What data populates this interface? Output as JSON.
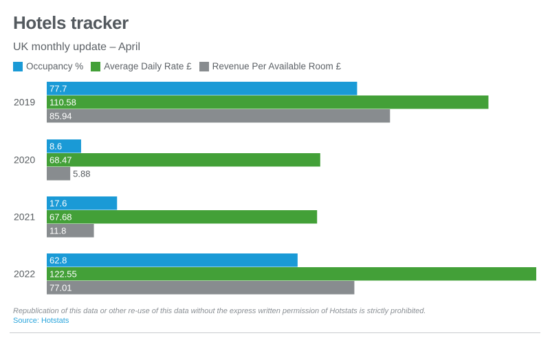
{
  "title": "Hotels tracker",
  "subtitle": "UK monthly update – April",
  "legend": [
    {
      "label": "Occupancy %",
      "color": "#1a9ad6"
    },
    {
      "label": "Average Daily Rate £",
      "color": "#43a038"
    },
    {
      "label": "Revenue Per Available Room £",
      "color": "#888c8f"
    }
  ],
  "chart_data": {
    "type": "bar",
    "orientation": "horizontal",
    "categories": [
      "2019",
      "2020",
      "2021",
      "2022"
    ],
    "series": [
      {
        "name": "Occupancy %",
        "color": "#1a9ad6",
        "values": [
          77.7,
          8.6,
          17.6,
          62.8
        ],
        "labels": [
          "77.7",
          "8.6",
          "17.6",
          "62.8"
        ]
      },
      {
        "name": "Average Daily Rate £",
        "color": "#43a038",
        "values": [
          110.58,
          68.47,
          67.68,
          122.55
        ],
        "labels": [
          "110.58",
          "68.47",
          "67.68",
          "122.55"
        ]
      },
      {
        "name": "Revenue Per Available Room £",
        "color": "#888c8f",
        "values": [
          85.94,
          5.88,
          11.8,
          77.01
        ],
        "labels": [
          "85.94",
          "5.88",
          "11.8",
          "77.01"
        ]
      }
    ],
    "xlim": [
      0,
      122.55
    ],
    "grid": false,
    "legend_position": "top-left"
  },
  "footer": {
    "note": "Republication of this data or other re-use of this data without the express written permission of Hotstats is strictly prohibited.",
    "source": "Source: Hotstats"
  }
}
